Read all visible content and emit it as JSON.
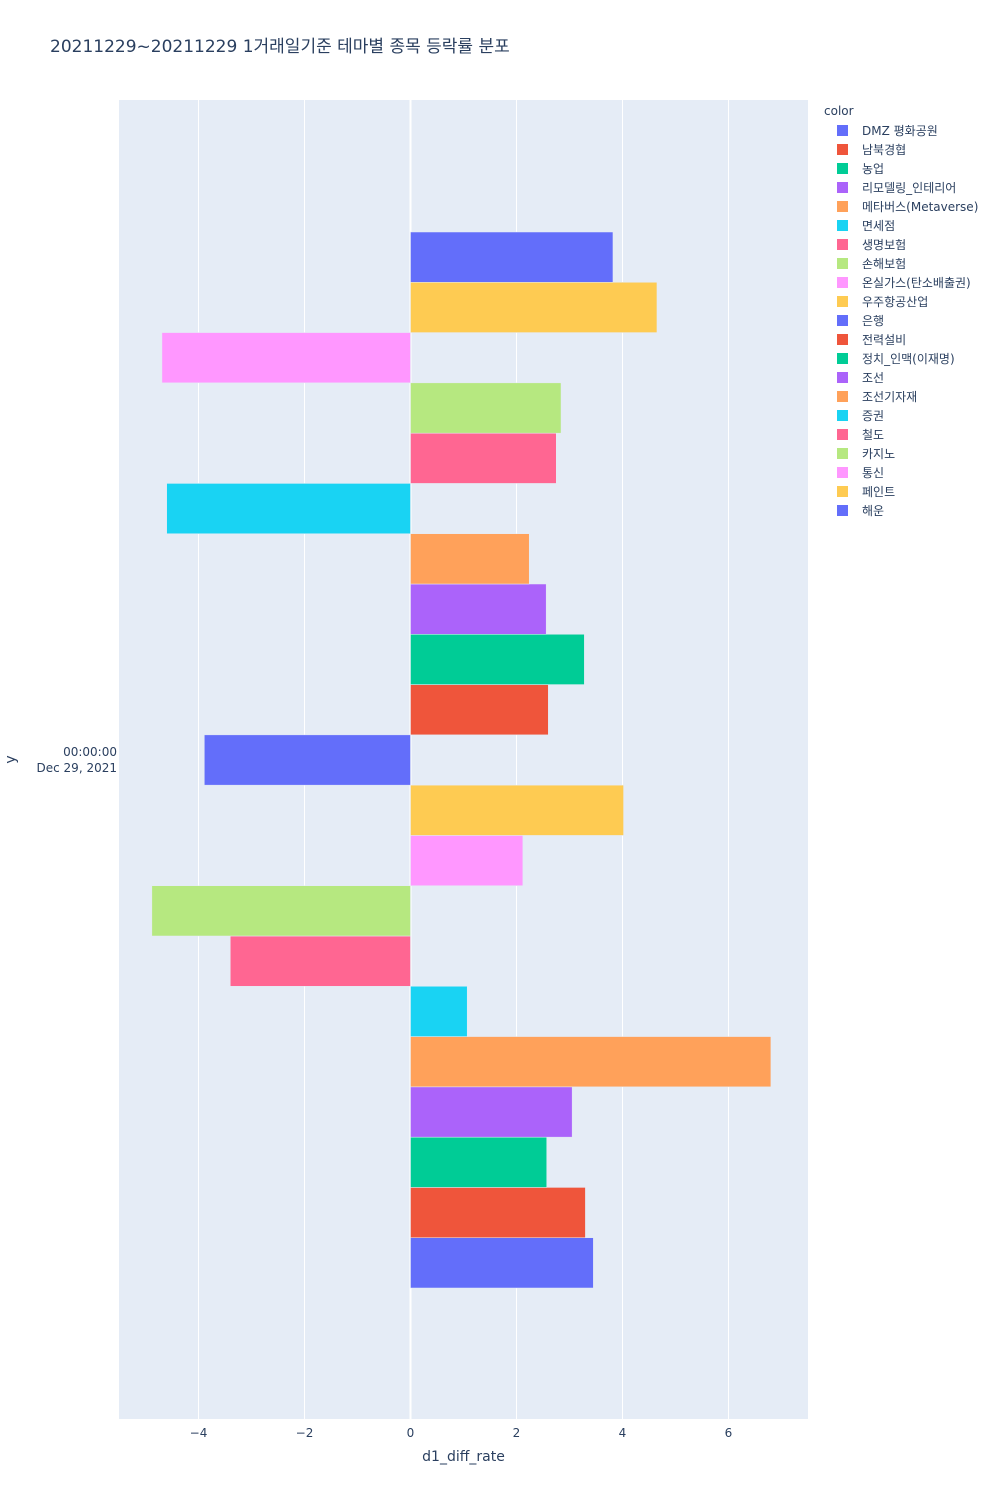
{
  "chart_data": {
    "type": "bar",
    "orientation": "horizontal",
    "barmode": "group",
    "title": "20211229~20211229 1거래일기준 테마별 종목 등락률 분포",
    "xlabel": "d1_diff_rate",
    "ylabel": "y",
    "xlim": [
      -5.5,
      7.5
    ],
    "xticks": [
      -4,
      -2,
      0,
      2,
      4,
      6
    ],
    "xtick_labels": [
      "−4",
      "−2",
      "0",
      "2",
      "4",
      "6"
    ],
    "ytick_label_lines": [
      "00:00:00",
      "Dec 29, 2021"
    ],
    "grid": true,
    "legend_title": "color",
    "legend_position": "right",
    "series": [
      {
        "name": "DMZ 평화공원",
        "value": 3.45,
        "color": "#636efa"
      },
      {
        "name": "남북경협",
        "value": 3.3,
        "color": "#EF553B"
      },
      {
        "name": "농업",
        "value": 2.57,
        "color": "#00cc96"
      },
      {
        "name": "리모델링_인테리어",
        "value": 3.05,
        "color": "#ab63fa"
      },
      {
        "name": "메타버스(Metaverse)",
        "value": 6.8,
        "color": "#FFA15A"
      },
      {
        "name": "면세점",
        "value": 1.07,
        "color": "#19d3f3"
      },
      {
        "name": "생명보험",
        "value": -3.4,
        "color": "#FF6692"
      },
      {
        "name": "손해보험",
        "value": -4.88,
        "color": "#B6E880"
      },
      {
        "name": "온실가스(탄소배출권)",
        "value": 2.12,
        "color": "#FF97FF"
      },
      {
        "name": "우주항공산업",
        "value": 4.02,
        "color": "#FECB52"
      },
      {
        "name": "은행",
        "value": -3.89,
        "color": "#636efa"
      },
      {
        "name": "전력설비",
        "value": 2.6,
        "color": "#EF553B"
      },
      {
        "name": "정치_인맥(이재명)",
        "value": 3.28,
        "color": "#00cc96"
      },
      {
        "name": "조선",
        "value": 2.56,
        "color": "#ab63fa"
      },
      {
        "name": "조선기자재",
        "value": 2.24,
        "color": "#FFA15A"
      },
      {
        "name": "증권",
        "value": -4.6,
        "color": "#19d3f3"
      },
      {
        "name": "철도",
        "value": 2.75,
        "color": "#FF6692"
      },
      {
        "name": "카지노",
        "value": 2.84,
        "color": "#B6E880"
      },
      {
        "name": "통신",
        "value": -4.69,
        "color": "#FF97FF"
      },
      {
        "name": "페인트",
        "value": 4.65,
        "color": "#FECB52"
      },
      {
        "name": "해운",
        "value": 3.82,
        "color": "#636efa"
      }
    ]
  }
}
